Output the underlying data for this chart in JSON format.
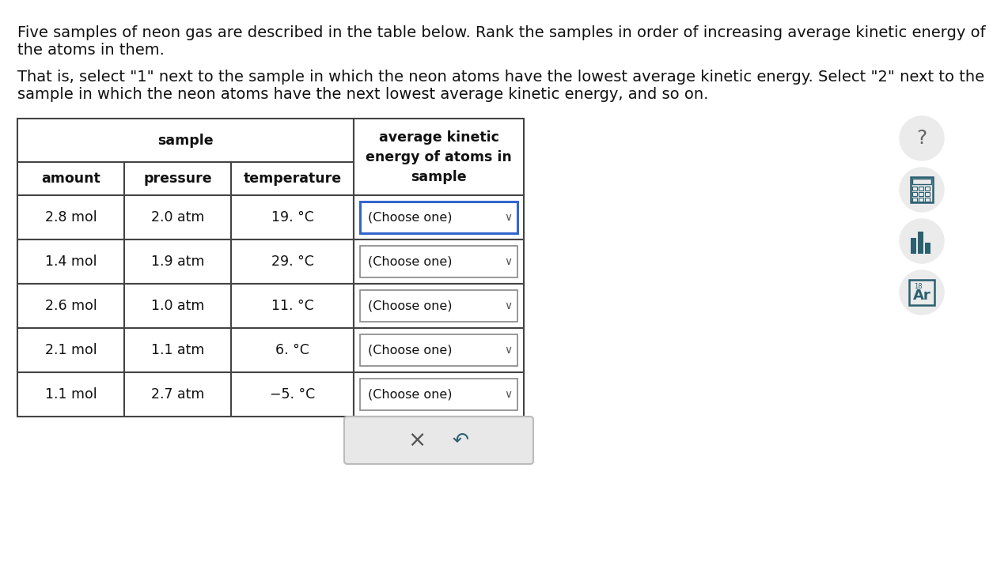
{
  "title_line1": "Five samples of neon gas are described in the table below. Rank the samples in order of increasing average kinetic energy of",
  "title_line2": "the atoms in them.",
  "subtitle_line1": "That is, select \"1\" next to the sample in which the neon atoms have the lowest average kinetic energy. Select \"2\" next to the",
  "subtitle_line2": "sample in which the neon atoms have the next lowest average kinetic energy, and so on.",
  "rows": [
    {
      "amount": "2.8 mol",
      "pressure": "2.0 atm",
      "temperature": "19. °C"
    },
    {
      "amount": "1.4 mol",
      "pressure": "1.9 atm",
      "temperature": "29. °C"
    },
    {
      "amount": "2.6 mol",
      "pressure": "1.0 atm",
      "temperature": "11. °C"
    },
    {
      "amount": "2.1 mol",
      "pressure": "1.1 atm",
      "temperature": "6. °C"
    },
    {
      "amount": "1.1 mol",
      "pressure": "2.7 atm",
      "temperature": "−5. °C"
    }
  ],
  "dropdown_text": "(Choose one)",
  "bg_color": "#ffffff",
  "table_border_color": "#444444",
  "text_color": "#111111",
  "icon_color": "#2a6070",
  "icon_bg": "#ebebeb",
  "font_size_title": 14.0,
  "font_size_header": 12.5,
  "font_size_cell": 12.5,
  "dropdown_border_color_active": "#3366cc",
  "dropdown_border_color_normal": "#888888",
  "bottom_bar_color": "#e8e8e8",
  "bottom_bar_border": "#bbbbbb"
}
